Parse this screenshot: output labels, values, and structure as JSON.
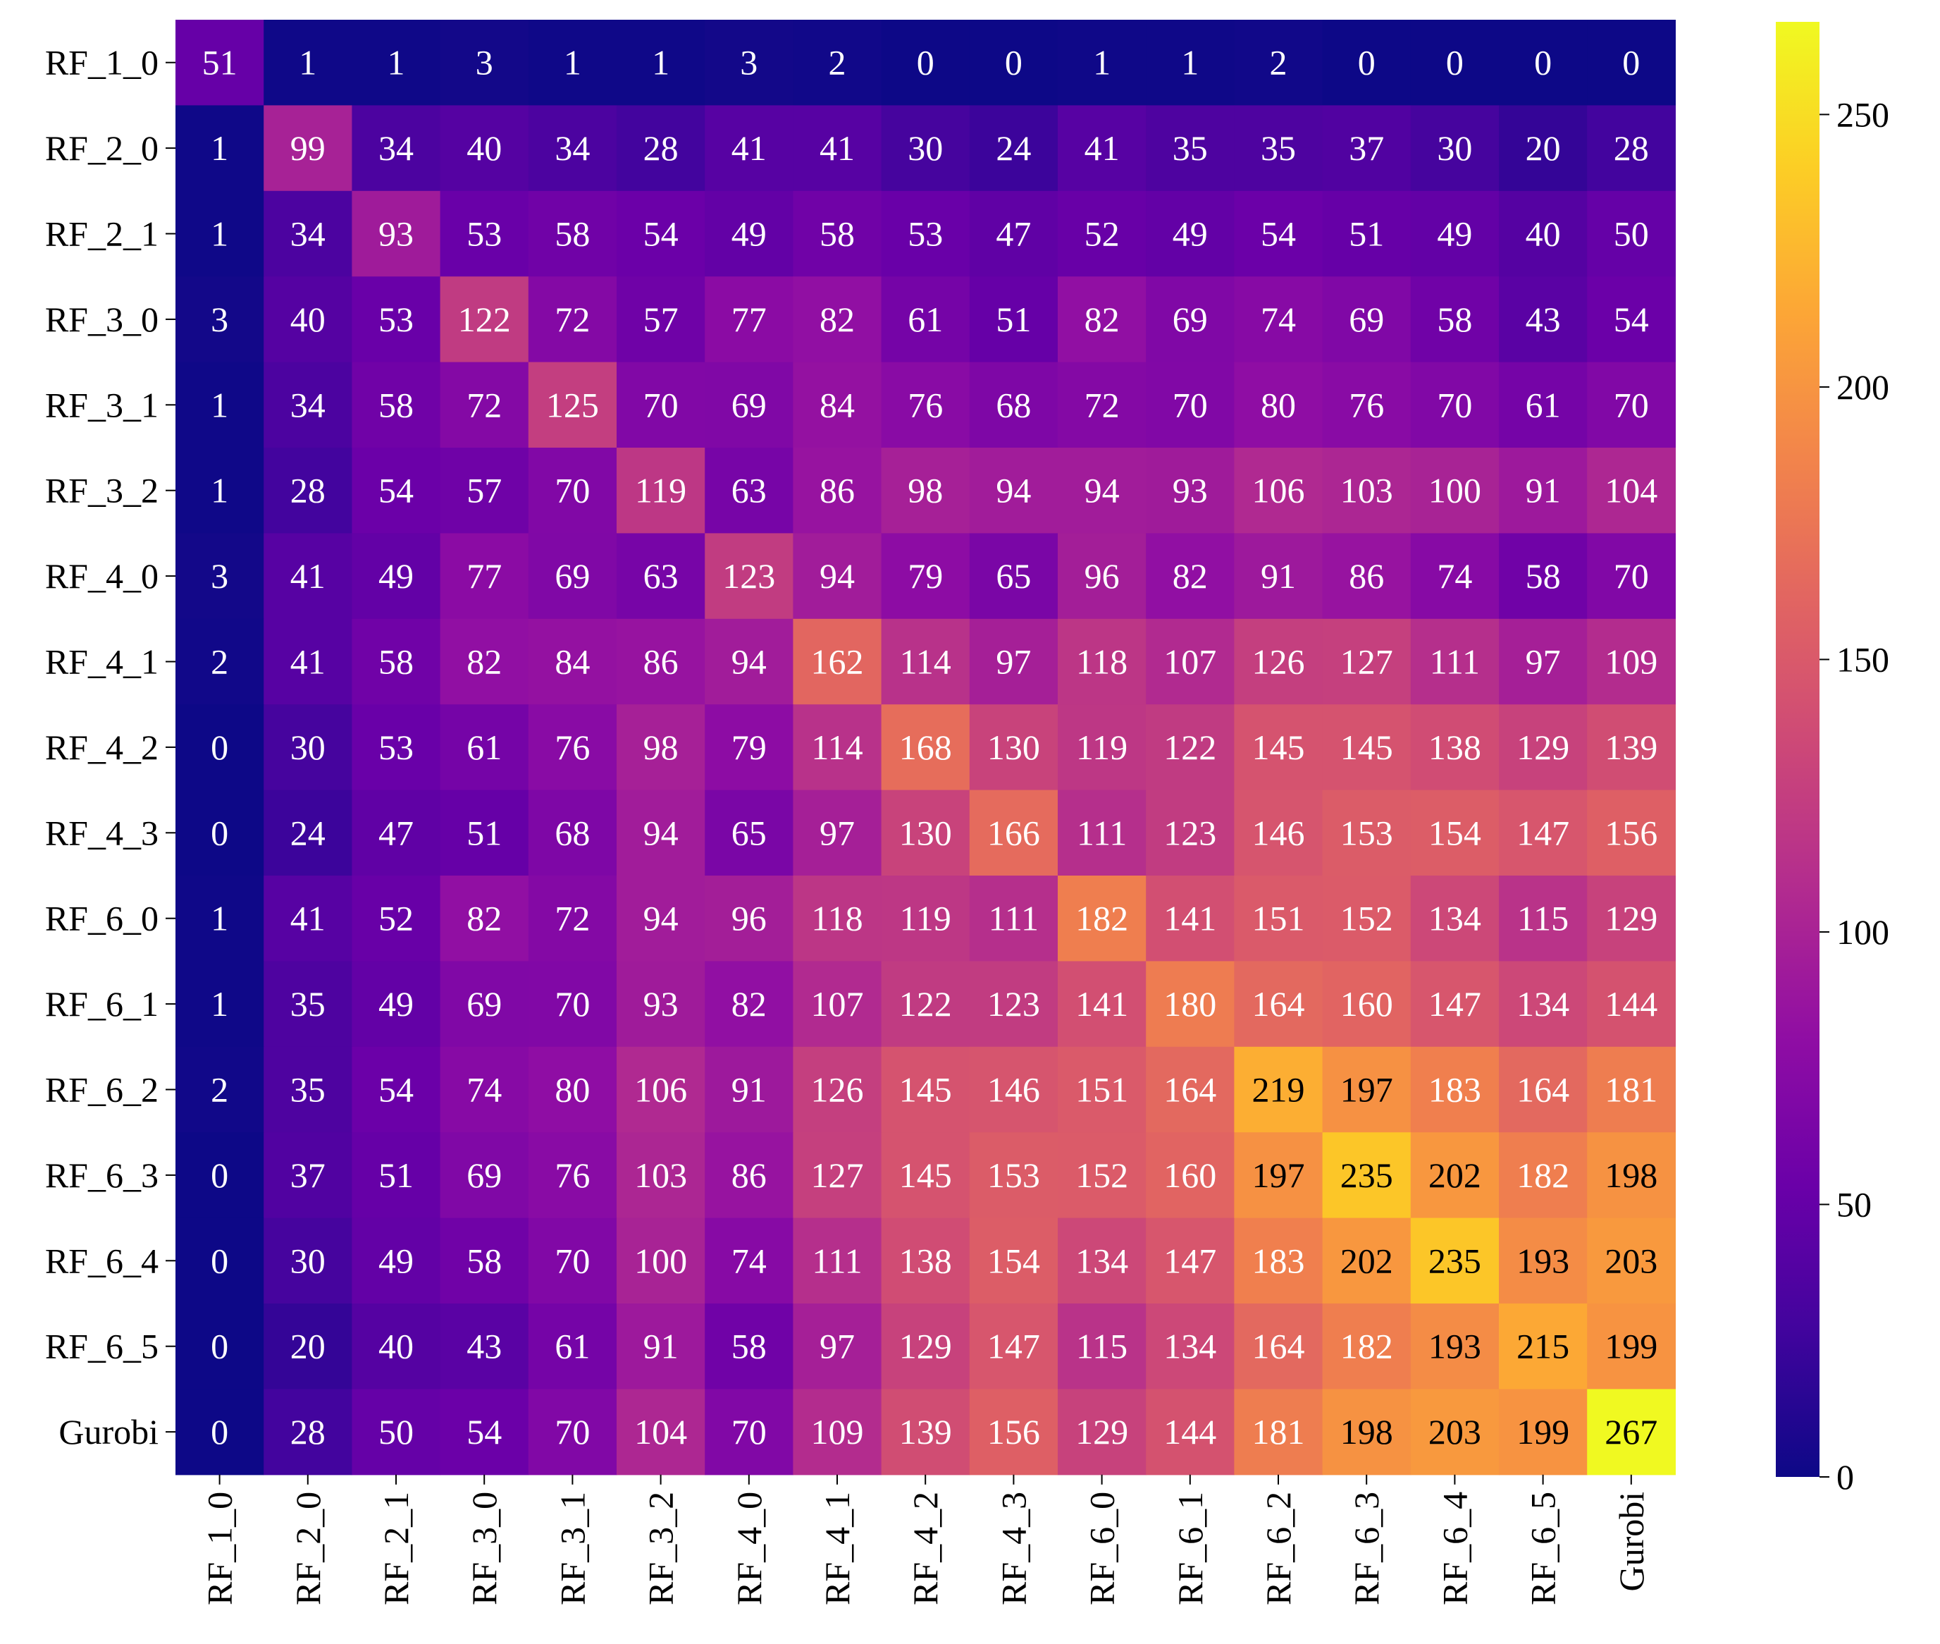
{
  "chart_data": {
    "type": "heatmap",
    "title": "",
    "xlabel": "",
    "ylabel": "",
    "x_categories": [
      "RF_1_0",
      "RF_2_0",
      "RF_2_1",
      "RF_3_0",
      "RF_3_1",
      "RF_3_2",
      "RF_4_0",
      "RF_4_1",
      "RF_4_2",
      "RF_4_3",
      "RF_6_0",
      "RF_6_1",
      "RF_6_2",
      "RF_6_3",
      "RF_6_4",
      "RF_6_5",
      "Gurobi"
    ],
    "y_categories": [
      "RF_1_0",
      "RF_2_0",
      "RF_2_1",
      "RF_3_0",
      "RF_3_1",
      "RF_3_2",
      "RF_4_0",
      "RF_4_1",
      "RF_4_2",
      "RF_4_3",
      "RF_6_0",
      "RF_6_1",
      "RF_6_2",
      "RF_6_3",
      "RF_6_4",
      "RF_6_5",
      "Gurobi"
    ],
    "values": [
      [
        51,
        1,
        1,
        3,
        1,
        1,
        3,
        2,
        0,
        0,
        1,
        1,
        2,
        0,
        0,
        0,
        0
      ],
      [
        1,
        99,
        34,
        40,
        34,
        28,
        41,
        41,
        30,
        24,
        41,
        35,
        35,
        37,
        30,
        20,
        28
      ],
      [
        1,
        34,
        93,
        53,
        58,
        54,
        49,
        58,
        53,
        47,
        52,
        49,
        54,
        51,
        49,
        40,
        50
      ],
      [
        3,
        40,
        53,
        122,
        72,
        57,
        77,
        82,
        61,
        51,
        82,
        69,
        74,
        69,
        58,
        43,
        54
      ],
      [
        1,
        34,
        58,
        72,
        125,
        70,
        69,
        84,
        76,
        68,
        72,
        70,
        80,
        76,
        70,
        61,
        70
      ],
      [
        1,
        28,
        54,
        57,
        70,
        119,
        63,
        86,
        98,
        94,
        94,
        93,
        106,
        103,
        100,
        91,
        104
      ],
      [
        3,
        41,
        49,
        77,
        69,
        63,
        123,
        94,
        79,
        65,
        96,
        82,
        91,
        86,
        74,
        58,
        70
      ],
      [
        2,
        41,
        58,
        82,
        84,
        86,
        94,
        162,
        114,
        97,
        118,
        107,
        126,
        127,
        111,
        97,
        109
      ],
      [
        0,
        30,
        53,
        61,
        76,
        98,
        79,
        114,
        168,
        130,
        119,
        122,
        145,
        145,
        138,
        129,
        139
      ],
      [
        0,
        24,
        47,
        51,
        68,
        94,
        65,
        97,
        130,
        166,
        111,
        123,
        146,
        153,
        154,
        147,
        156
      ],
      [
        1,
        41,
        52,
        82,
        72,
        94,
        96,
        118,
        119,
        111,
        182,
        141,
        151,
        152,
        134,
        115,
        129
      ],
      [
        1,
        35,
        49,
        69,
        70,
        93,
        82,
        107,
        122,
        123,
        141,
        180,
        164,
        160,
        147,
        134,
        144
      ],
      [
        2,
        35,
        54,
        74,
        80,
        106,
        91,
        126,
        145,
        146,
        151,
        164,
        219,
        197,
        183,
        164,
        181
      ],
      [
        0,
        37,
        51,
        69,
        76,
        103,
        86,
        127,
        145,
        153,
        152,
        160,
        197,
        235,
        202,
        182,
        198
      ],
      [
        0,
        30,
        49,
        58,
        70,
        100,
        74,
        111,
        138,
        154,
        134,
        147,
        183,
        202,
        235,
        193,
        203
      ],
      [
        0,
        20,
        40,
        43,
        61,
        91,
        58,
        97,
        129,
        147,
        115,
        134,
        164,
        182,
        193,
        215,
        199
      ],
      [
        0,
        28,
        50,
        54,
        70,
        104,
        70,
        109,
        139,
        156,
        129,
        144,
        181,
        198,
        203,
        199,
        267
      ]
    ],
    "colormap": "plasma",
    "vmin": 0,
    "vmax": 267,
    "colorbar": {
      "ticks": [
        0,
        50,
        100,
        150,
        200,
        250
      ],
      "tick_labels": [
        "0",
        "50",
        "100",
        "150",
        "200",
        "250"
      ],
      "placement": "right"
    },
    "grid": false,
    "annotate": true,
    "text_colors": {
      "dark": "#000000",
      "light": "#ffffff"
    }
  }
}
